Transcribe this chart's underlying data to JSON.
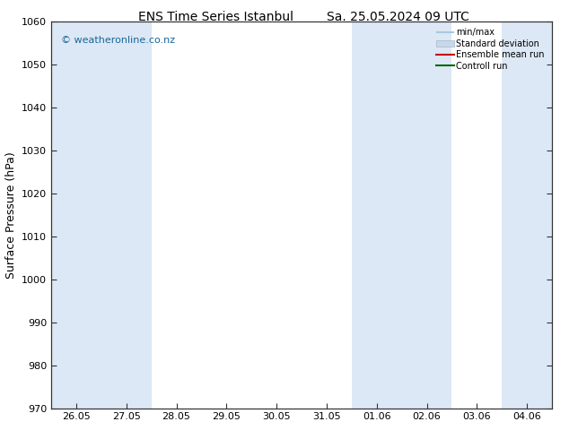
{
  "title_left": "ENS Time Series Istanbul",
  "title_right": "Sa. 25.05.2024 09 UTC",
  "ylabel": "Surface Pressure (hPa)",
  "ylim": [
    970,
    1060
  ],
  "yticks": [
    970,
    980,
    990,
    1000,
    1010,
    1020,
    1030,
    1040,
    1050,
    1060
  ],
  "x_tick_labels": [
    "26.05",
    "27.05",
    "28.05",
    "29.05",
    "30.05",
    "31.05",
    "01.06",
    "02.06",
    "03.06",
    "04.06"
  ],
  "x_tick_positions": [
    0,
    1,
    2,
    3,
    4,
    5,
    6,
    7,
    8,
    9
  ],
  "shaded_bands": [
    {
      "xmin": -0.5,
      "xmax": 0.5
    },
    {
      "xmin": 0.5,
      "xmax": 1.5
    },
    {
      "xmin": 5.5,
      "xmax": 6.5
    },
    {
      "xmin": 6.5,
      "xmax": 7.5
    },
    {
      "xmin": 8.5,
      "xmax": 9.5
    }
  ],
  "shaded_color": "#dce8f5",
  "background_color": "#ffffff",
  "plot_bg_color": "#ffffff",
  "watermark": "© weatheronline.co.nz",
  "watermark_color": "#1a6699",
  "legend_items": [
    {
      "label": "min/max",
      "color": "#a8c8e0",
      "style": "errorbar"
    },
    {
      "label": "Standard deviation",
      "color": "#c8d8e8",
      "style": "band"
    },
    {
      "label": "Ensemble mean run",
      "color": "#cc0000",
      "style": "line"
    },
    {
      "label": "Controll run",
      "color": "#006600",
      "style": "line"
    }
  ],
  "fig_width": 6.34,
  "fig_height": 4.9,
  "dpi": 100,
  "title_fontsize": 10,
  "ylabel_fontsize": 9,
  "tick_fontsize": 8,
  "watermark_fontsize": 8
}
